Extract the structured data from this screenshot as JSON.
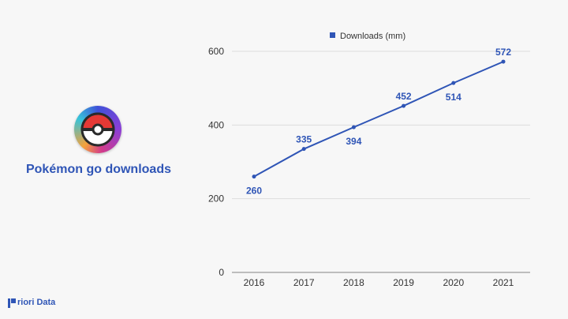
{
  "title": "Pokémon go downloads",
  "brand": "riori Data",
  "icon": "pokeball-icon",
  "colors": {
    "series": "#2f55b6",
    "grid": "#dcdcdc",
    "axis_text": "#333333"
  },
  "chart_data": {
    "type": "line",
    "categories": [
      "2016",
      "2017",
      "2018",
      "2019",
      "2020",
      "2021"
    ],
    "series": [
      {
        "name": "Downloads (mm)",
        "values": [
          260,
          335,
          394,
          452,
          514,
          572
        ]
      }
    ],
    "yticks": [
      0,
      200,
      400,
      600
    ],
    "ylim": [
      0,
      600
    ],
    "grid": true,
    "legend": "top-center",
    "data_labels": [
      "260",
      "335",
      "394",
      "452",
      "514",
      "572"
    ]
  }
}
